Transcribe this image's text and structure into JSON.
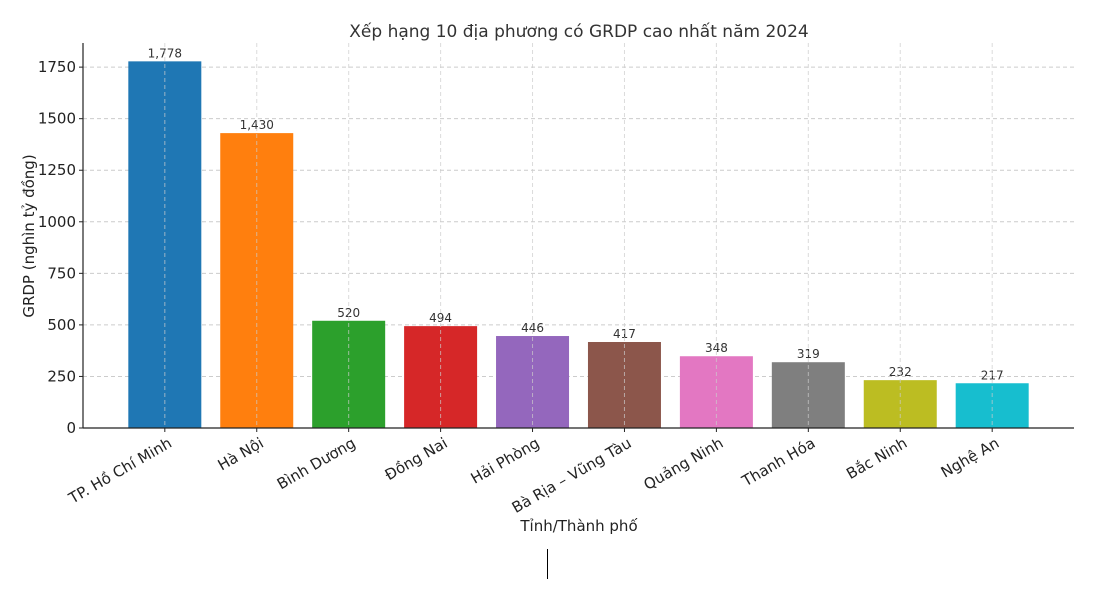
{
  "chart_data": {
    "type": "bar",
    "title": "Xếp hạng 10 địa phương có GRDP cao nhất năm 2024",
    "xlabel": "Tỉnh/Thành phố",
    "ylabel": "GRDP (nghìn tỷ đồng)",
    "categories": [
      "TP. Hồ Chí Minh",
      "Hà Nội",
      "Bình Dương",
      "Đồng Nai",
      "Hải Phòng",
      "Bà Rịa – Vũng Tàu",
      "Quảng Ninh",
      "Thanh Hóa",
      "Bắc Ninh",
      "Nghệ An"
    ],
    "values": [
      1778,
      1430,
      520,
      494,
      446,
      417,
      348,
      319,
      232,
      217
    ],
    "value_labels": [
      "1,778",
      "1,430",
      "520",
      "494",
      "446",
      "417",
      "348",
      "319",
      "232",
      "217"
    ],
    "colors": [
      "#1f77b4",
      "#ff7f0e",
      "#2ca02c",
      "#d62728",
      "#9467bd",
      "#8c564b",
      "#e377c2",
      "#7f7f7f",
      "#bcbd22",
      "#17becf"
    ],
    "yticks": [
      0,
      250,
      500,
      750,
      1000,
      1250,
      1500,
      1750
    ],
    "ylim": [
      0,
      1867
    ],
    "grid": true,
    "legend": "none"
  }
}
